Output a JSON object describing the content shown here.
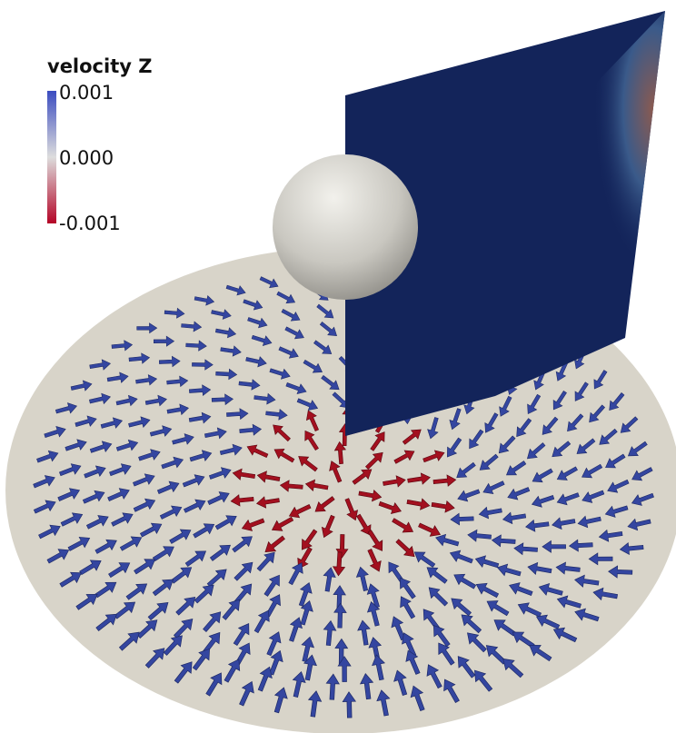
{
  "legend": {
    "title": "velocity Z",
    "ticks": [
      "0.001",
      "0.000",
      "-0.001"
    ]
  }
}
